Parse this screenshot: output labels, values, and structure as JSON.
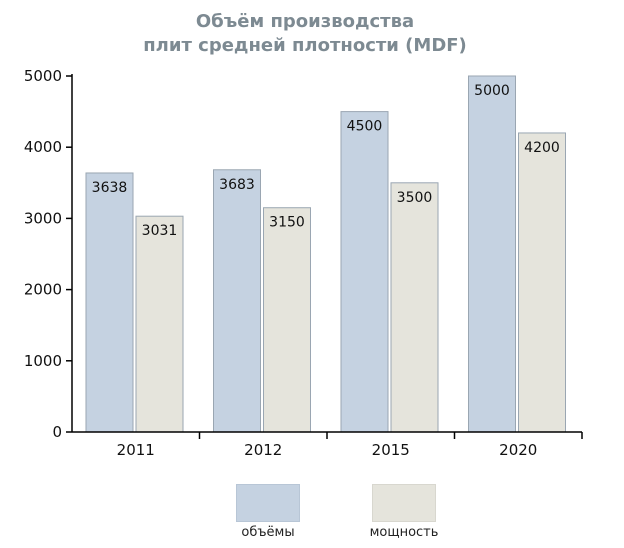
{
  "chart_data": {
    "type": "bar",
    "title": "Объём производства плит средней плотности (MDF)",
    "title_lines": [
      "Объём производства",
      "плит средней плотности (MDF)"
    ],
    "categories": [
      "2011",
      "2012",
      "2015",
      "2020"
    ],
    "series": [
      {
        "name": "объёмы",
        "values": [
          3638,
          3683,
          4500,
          5000
        ],
        "color": "#c5d2e1",
        "label_texts": [
          "3638",
          "3683",
          "4500",
          "5000"
        ]
      },
      {
        "name": "мощность",
        "values": [
          3031,
          3150,
          3500,
          4200
        ],
        "color": "#e5e4dc",
        "label_texts": [
          "3031",
          "3150",
          "3500",
          "4200"
        ]
      }
    ],
    "ylim": [
      0,
      5000
    ],
    "yticks": [
      0,
      1000,
      2000,
      3000,
      4000,
      5000
    ],
    "ytick_labels": [
      "0",
      "1000",
      "2000",
      "3000",
      "4000",
      "5000"
    ],
    "xlabel": "",
    "ylabel": "",
    "grid": false,
    "legend_position": "bottom"
  },
  "colors": {
    "title": "#7d8a92",
    "bar_border": "#9aa6b2",
    "axis": "#000000"
  }
}
